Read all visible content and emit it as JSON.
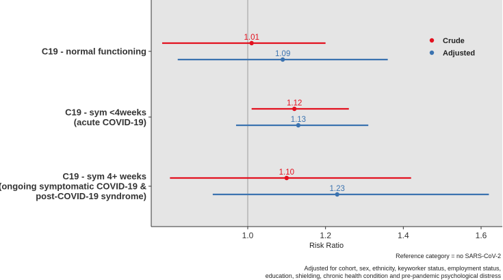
{
  "chart_data": {
    "type": "forest",
    "xlabel": "Risk Ratio",
    "xlim": [
      0.75,
      1.65
    ],
    "x_ticks": [
      1.0,
      1.2,
      1.4,
      1.6
    ],
    "x_tick_labels": [
      "1.0",
      "1.2",
      "1.4",
      "1.6"
    ],
    "reference_line": 1.0,
    "grid": false,
    "legend_placement": "top-right",
    "categories": [
      {
        "lines": [
          "C19 - normal functioning"
        ]
      },
      {
        "lines": [
          "C19 - sym <4weeks",
          "(acute COVID-19)"
        ]
      },
      {
        "lines": [
          "C19 - sym 4+ weeks",
          "(ongoing symptomatic COVID-19 &",
          "post-COVID-19 syndrome)"
        ]
      }
    ],
    "series": [
      {
        "name": "Crude",
        "color": "#e3101e",
        "points": [
          {
            "estimate": 1.01,
            "label": "1.01",
            "lower": 0.78,
            "upper": 1.2
          },
          {
            "estimate": 1.12,
            "label": "1.12",
            "lower": 1.01,
            "upper": 1.26
          },
          {
            "estimate": 1.1,
            "label": "1.10",
            "lower": 0.8,
            "upper": 1.42
          }
        ]
      },
      {
        "name": "Adjusted",
        "color": "#3b73b0",
        "points": [
          {
            "estimate": 1.09,
            "label": "1.09",
            "lower": 0.82,
            "upper": 1.36
          },
          {
            "estimate": 1.13,
            "label": "1.13",
            "lower": 0.97,
            "upper": 1.31
          },
          {
            "estimate": 1.23,
            "label": "1.23",
            "lower": 0.91,
            "upper": 1.62
          }
        ]
      }
    ],
    "footnotes": {
      "reference": "Reference category = no SARS-CoV-2",
      "adjusted_line1": "Adjusted for cohort, sex, ethnicity, keyworker status, employment status,",
      "adjusted_line2": "education, shielding, chronic health condition and pre-pandemic psychological distress"
    },
    "colors": {
      "panel_background": "#e5e5e5",
      "reference_line": "#9a9a9a",
      "axis": "#333333"
    }
  }
}
